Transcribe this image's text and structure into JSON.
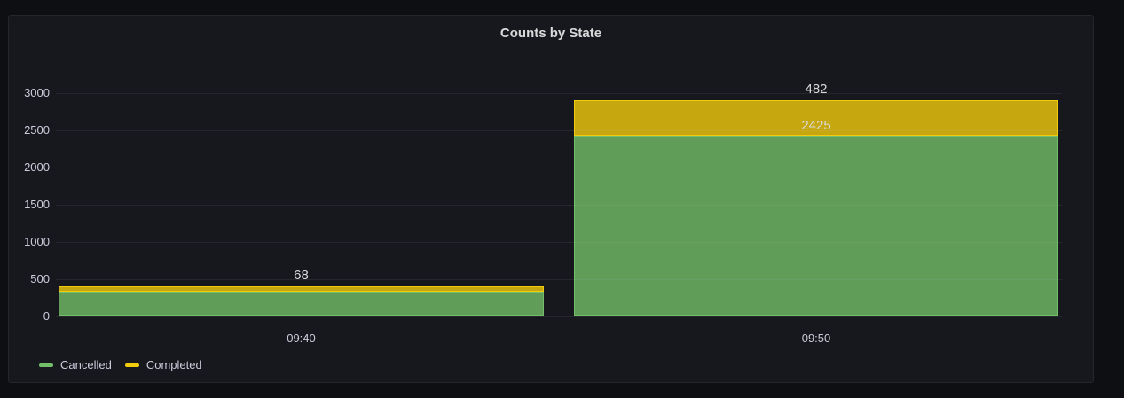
{
  "panel": {
    "title": "Counts by State"
  },
  "chart_data": {
    "type": "bar",
    "stacked": true,
    "title": "Counts by State",
    "categories": [
      "09:40",
      "09:50"
    ],
    "series": [
      {
        "name": "Cancelled",
        "color": "#73bf69",
        "fill": "rgba(115,191,105,0.8)",
        "values": [
          330,
          2425
        ]
      },
      {
        "name": "Completed",
        "color": "#f2cc0c",
        "fill": "rgba(242,204,12,0.8)",
        "values": [
          68,
          482
        ]
      }
    ],
    "top_labels": [
      "68",
      "482"
    ],
    "inline_labels": [
      "",
      "2425"
    ],
    "y_ticks": [
      0,
      500,
      1000,
      1500,
      2000,
      2500,
      3000
    ],
    "ylim": [
      0,
      3000
    ],
    "xlabel": "",
    "ylabel": "",
    "grid": true,
    "legend_position": "bottom-left",
    "legend_entries": [
      "Cancelled",
      "Completed"
    ]
  }
}
